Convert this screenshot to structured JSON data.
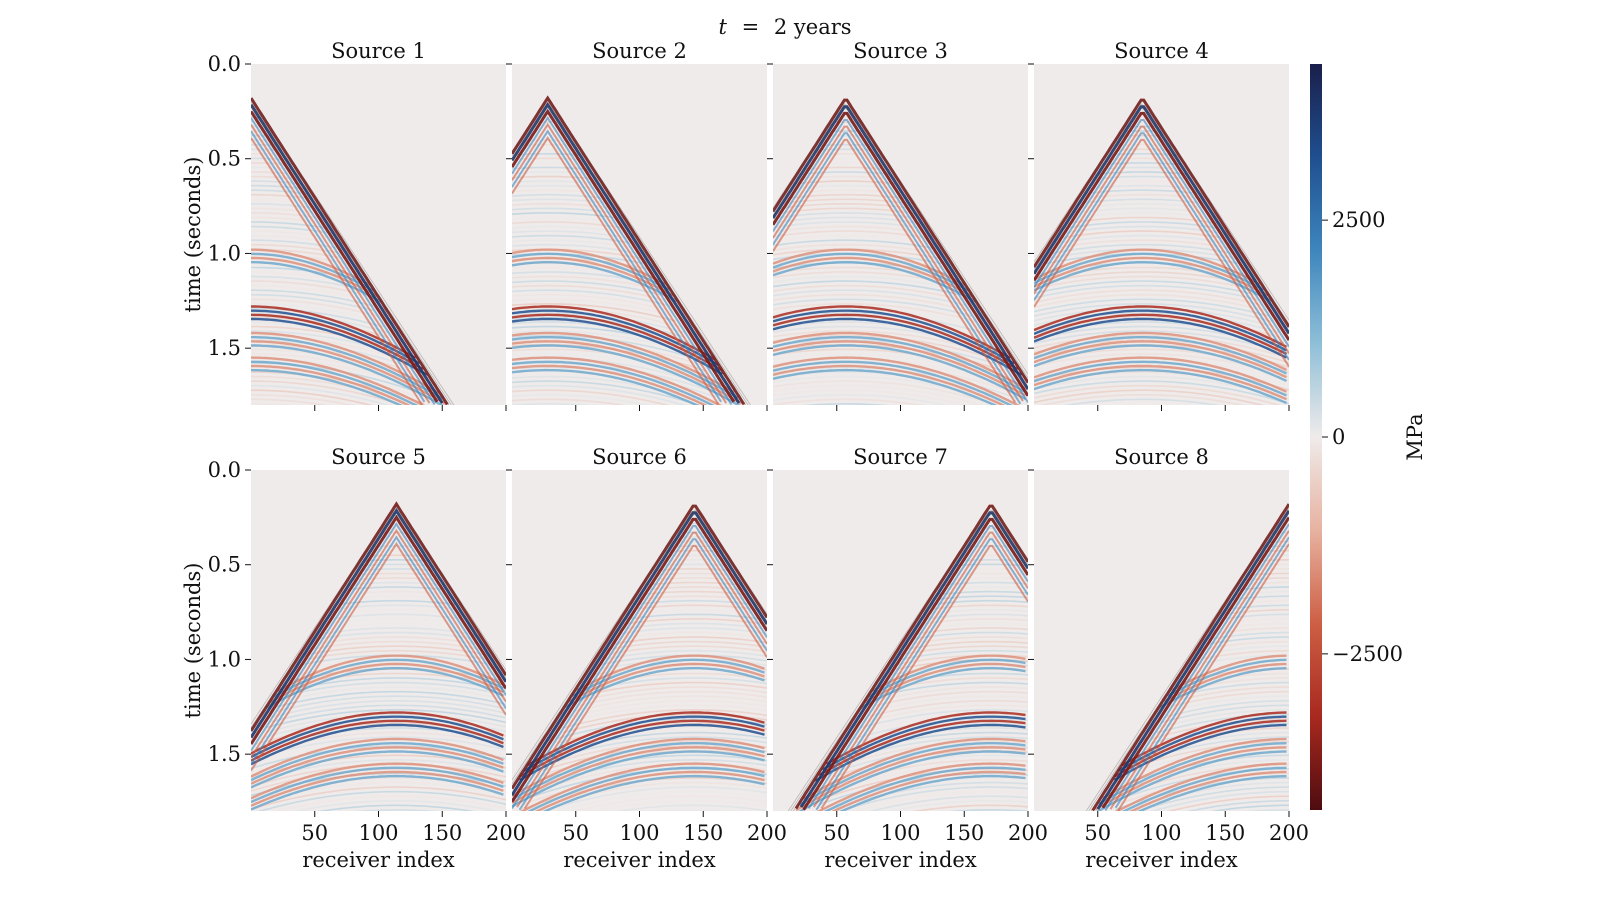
{
  "chart_data": {
    "type": "heatmap",
    "title": "t = 2 years",
    "title_parts": {
      "var": "t",
      "eq": "=",
      "rest": "2 years"
    },
    "xlabel": "receiver index",
    "ylabel": "time (seconds)",
    "xlim": [
      0,
      200
    ],
    "ylim": [
      1.8,
      0.0
    ],
    "y_inverted": true,
    "xticks": [
      50,
      100,
      150,
      200
    ],
    "xtick_labels": [
      "50",
      "100",
      "150",
      "200"
    ],
    "yticks": [
      0.0,
      0.5,
      1.0,
      1.5
    ],
    "ytick_labels": [
      "0.0",
      "0.5",
      "1.0",
      "1.5"
    ],
    "grid": false,
    "layout": {
      "rows": 2,
      "cols": 4
    },
    "panels": [
      {
        "title": "Source 1",
        "source_receiver": 0
      },
      {
        "title": "Source 2",
        "source_receiver": 28
      },
      {
        "title": "Source 3",
        "source_receiver": 57
      },
      {
        "title": "Source 4",
        "source_receiver": 85
      },
      {
        "title": "Source 5",
        "source_receiver": 114
      },
      {
        "title": "Source 6",
        "source_receiver": 143
      },
      {
        "title": "Source 7",
        "source_receiver": 171
      },
      {
        "title": "Source 8",
        "source_receiver": 200
      }
    ],
    "colorbar": {
      "label": "MPa",
      "range": [
        -4300,
        4300
      ],
      "ticks": [
        2500,
        0,
        -2500
      ],
      "tick_labels": [
        "2500",
        "0",
        "−2500"
      ],
      "colormap": [
        "#1a1f4a",
        "#1f4f8f",
        "#3e86bd",
        "#8fbfd8",
        "#efebea",
        "#e7b2a0",
        "#cd5f44",
        "#a8291f",
        "#4e0c10"
      ]
    },
    "background_color": "#efebea"
  }
}
